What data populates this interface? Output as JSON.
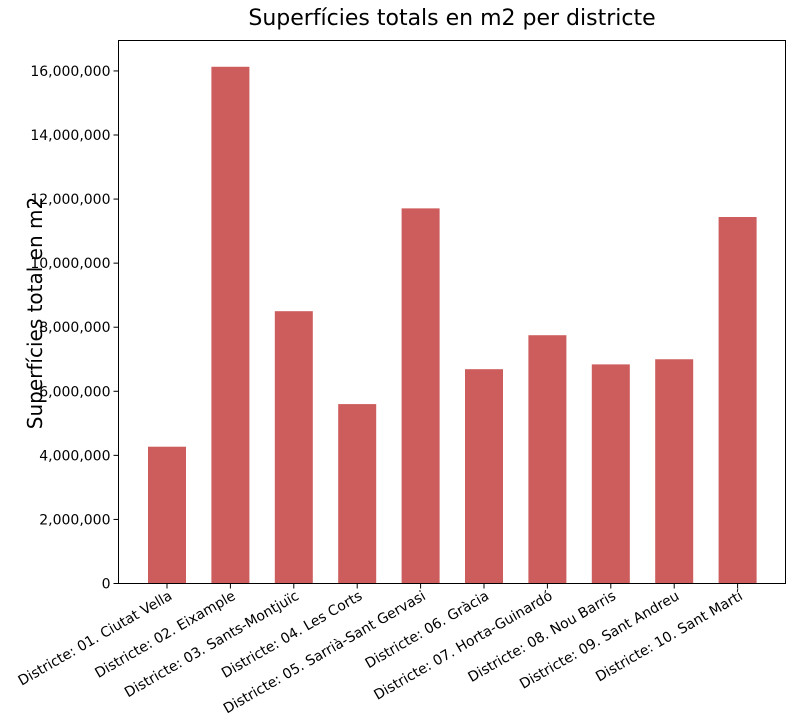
{
  "chart_data": {
    "type": "bar",
    "title": "Superfícies totals en m2 per districte",
    "xlabel": "",
    "ylabel": "Superfícies total en m2",
    "categories": [
      "Districte: 01. Ciutat Vella",
      "Districte: 02. Eixample",
      "Districte: 03. Sants-Montjuïc",
      "Districte: 04. Les Corts",
      "Districte: 05. Sarrià-Sant Gervasi",
      "Districte: 06. Gràcia",
      "Districte: 07. Horta-Guinardó",
      "Districte: 08. Nou Barris",
      "Districte: 09. Sant Andreu",
      "Districte: 10. Sant Martí"
    ],
    "values": [
      4270000,
      16130000,
      8500000,
      5600000,
      11710000,
      6690000,
      7750000,
      6840000,
      7000000,
      11440000
    ],
    "ylim": [
      0,
      16950000
    ],
    "yticks": [
      0,
      2000000,
      4000000,
      6000000,
      8000000,
      10000000,
      12000000,
      14000000,
      16000000
    ],
    "ytick_labels": [
      "0",
      "2,000,000",
      "4,000,000",
      "6,000,000",
      "8,000,000",
      "10,000,000",
      "12,000,000",
      "14,000,000",
      "16,000,000"
    ],
    "bar_color": "#cd5c5c",
    "grid": false,
    "legend": "none"
  }
}
